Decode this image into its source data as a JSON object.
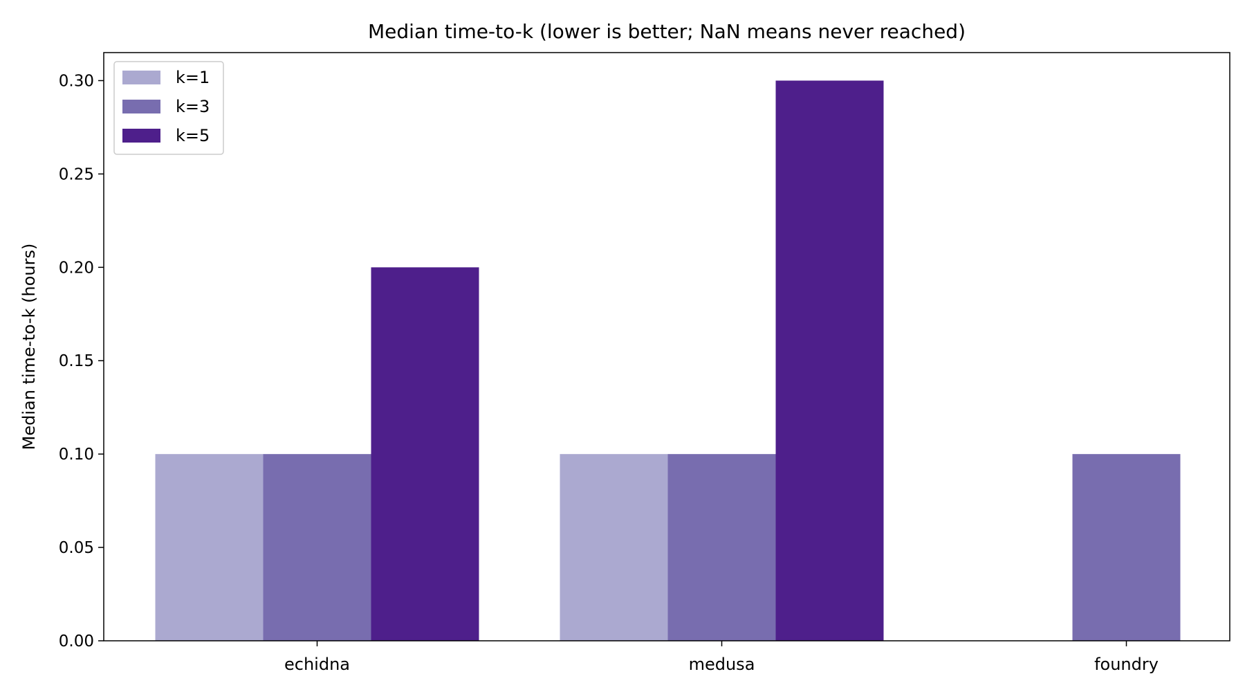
{
  "chart_data": {
    "type": "bar",
    "title": "Median time-to-k (lower is better; NaN means never reached)",
    "xlabel": "",
    "ylabel": "Median time-to-k (hours)",
    "categories": [
      "echidna",
      "medusa",
      "foundry"
    ],
    "series": [
      {
        "name": "k=1",
        "color": "#aba9d0",
        "values": [
          0.1,
          0.1,
          null
        ]
      },
      {
        "name": "k=3",
        "color": "#786daf",
        "values": [
          0.1,
          0.1,
          0.1
        ]
      },
      {
        "name": "k=5",
        "color": "#4e1f8b",
        "values": [
          0.2,
          0.3,
          null
        ]
      }
    ],
    "ylim": [
      0,
      0.315
    ],
    "yticks": [
      0.0,
      0.05,
      0.1,
      0.15,
      0.2,
      0.25,
      0.3
    ],
    "ytick_labels": [
      "0.00",
      "0.05",
      "0.10",
      "0.15",
      "0.20",
      "0.25",
      "0.30"
    ],
    "grid": false,
    "legend_position": "top-left"
  }
}
